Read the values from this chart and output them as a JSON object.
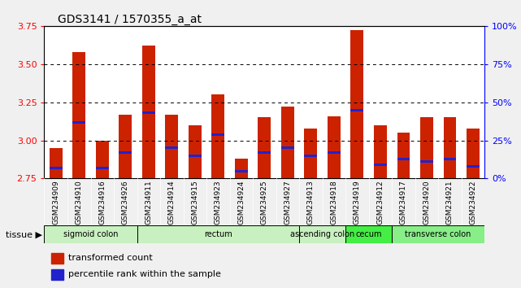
{
  "title": "GDS3141 / 1570355_a_at",
  "samples": [
    "GSM234909",
    "GSM234910",
    "GSM234916",
    "GSM234926",
    "GSM234911",
    "GSM234914",
    "GSM234915",
    "GSM234923",
    "GSM234924",
    "GSM234925",
    "GSM234927",
    "GSM234913",
    "GSM234918",
    "GSM234919",
    "GSM234912",
    "GSM234917",
    "GSM234920",
    "GSM234921",
    "GSM234922"
  ],
  "red_values": [
    2.95,
    3.58,
    3.0,
    3.17,
    3.62,
    3.17,
    3.1,
    3.3,
    2.88,
    3.15,
    3.22,
    3.08,
    3.16,
    3.72,
    3.1,
    3.05,
    3.15,
    3.15,
    3.08
  ],
  "blue_values": [
    2.82,
    3.12,
    2.82,
    2.92,
    3.18,
    2.95,
    2.9,
    3.04,
    2.8,
    2.92,
    2.95,
    2.9,
    2.92,
    3.2,
    2.84,
    2.88,
    2.86,
    2.88,
    2.83
  ],
  "ylim_left": [
    2.75,
    3.75
  ],
  "yticks_left": [
    2.75,
    3.0,
    3.25,
    3.5,
    3.75
  ],
  "yticks_right": [
    0,
    25,
    50,
    75,
    100
  ],
  "ytick_labels_right": [
    "0%",
    "25%",
    "50%",
    "75%",
    "100%"
  ],
  "grid_lines": [
    3.0,
    3.25,
    3.5
  ],
  "tissues": [
    {
      "label": "sigmoid colon",
      "start": 0,
      "end": 4,
      "color": "#c8f0c0"
    },
    {
      "label": "rectum",
      "start": 4,
      "end": 11,
      "color": "#c8f0c0"
    },
    {
      "label": "ascending colon",
      "start": 11,
      "end": 13,
      "color": "#c8f0c0"
    },
    {
      "label": "cecum",
      "start": 13,
      "end": 15,
      "color": "#44ee44"
    },
    {
      "label": "transverse colon",
      "start": 15,
      "end": 19,
      "color": "#88ee88"
    }
  ],
  "bar_color": "#cc2200",
  "dot_color": "#2222cc",
  "bar_width": 0.55,
  "bar_bottom": 2.75,
  "legend_items": [
    {
      "color": "#cc2200",
      "label": "transformed count"
    },
    {
      "color": "#2222cc",
      "label": "percentile rank within the sample"
    }
  ],
  "figure_bg": "#f0f0f0",
  "plot_bg": "#ffffff",
  "xtick_bg": "#c8c8c8"
}
